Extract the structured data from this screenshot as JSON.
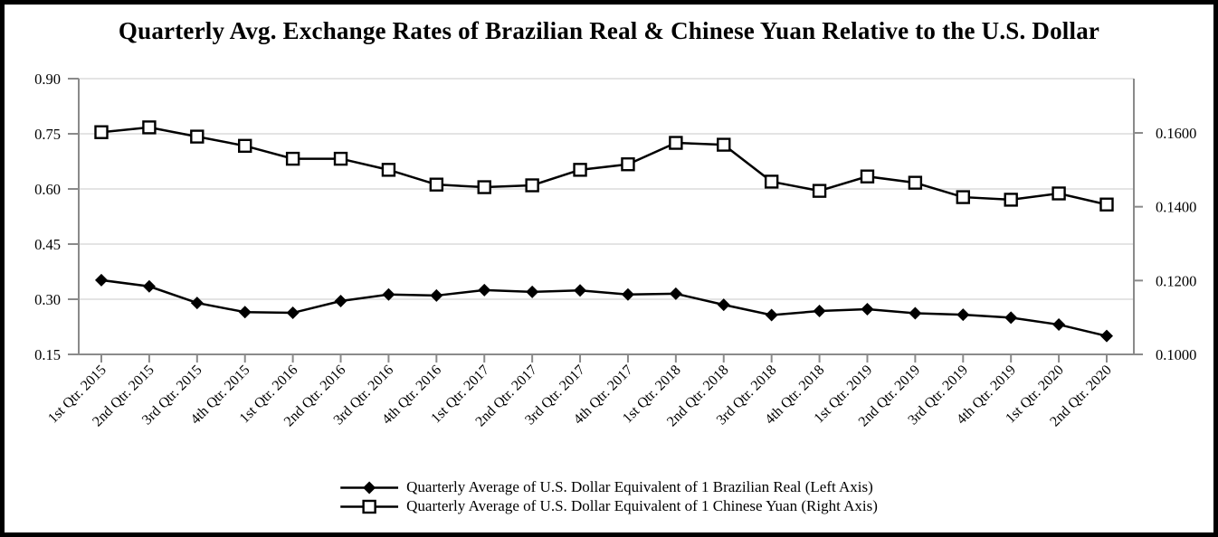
{
  "title": "Quarterly Avg. Exchange Rates of Brazilian Real & Chinese Yuan Relative to the U.S. Dollar",
  "colors": {
    "series": "#000000",
    "axis": "#8a8a8a",
    "gridline": "#dcdcdc",
    "background": "#ffffff",
    "frame_border": "#000000"
  },
  "legend": {
    "items": [
      {
        "slug": "brazilian-real",
        "marker": "filled-diamond",
        "label": "Quarterly Average of U.S. Dollar Equivalent of 1 Brazilian Real (Left Axis)"
      },
      {
        "slug": "chinese-yuan",
        "marker": "open-square",
        "label": "Quarterly Average of U.S. Dollar Equivalent of 1 Chinese Yuan (Right Axis)"
      }
    ]
  },
  "chart_data": {
    "type": "line",
    "title": "Quarterly Avg. Exchange Rates of Brazilian Real & Chinese Yuan Relative to the U.S. Dollar",
    "grid": "horizontal-light",
    "legend_position": "bottom",
    "categories": [
      "1st Qtr. 2015",
      "2nd Qtr. 2015",
      "3rd Qtr. 2015",
      "4th Qtr. 2015",
      "1st Qtr. 2016",
      "2nd Qtr. 2016",
      "3rd Qtr. 2016",
      "4th Qtr. 2016",
      "1st Qtr. 2017",
      "2nd Qtr. 2017",
      "3rd Qtr. 2017",
      "4th Qtr. 2017",
      "1st Qtr. 2018",
      "2nd Qtr. 2018",
      "3rd Qtr. 2018",
      "4th Qtr. 2018",
      "1st Qtr. 2019",
      "2nd Qtr. 2019",
      "3rd Qtr. 2019",
      "4th Qtr. 2019",
      "1st Qtr. 2020",
      "2nd Qtr. 2020"
    ],
    "series": [
      {
        "name": "Quarterly Average of U.S. Dollar Equivalent of 1 Brazilian Real (Left Axis)",
        "slug": "brazilian-real",
        "axis": "left",
        "marker": "filled-diamond",
        "values": [
          0.352,
          0.335,
          0.29,
          0.265,
          0.263,
          0.295,
          0.313,
          0.31,
          0.325,
          0.32,
          0.324,
          0.313,
          0.315,
          0.285,
          0.257,
          0.268,
          0.273,
          0.262,
          0.258,
          0.25,
          0.231,
          0.2
        ]
      },
      {
        "name": "Quarterly Average of U.S. Dollar Equivalent of 1 Chinese Yuan (Right Axis)",
        "slug": "chinese-yuan",
        "axis": "right",
        "marker": "open-square",
        "values": [
          0.1602,
          0.1615,
          0.159,
          0.1565,
          0.153,
          0.153,
          0.15,
          0.146,
          0.1453,
          0.1458,
          0.15,
          0.1515,
          0.1573,
          0.1568,
          0.1468,
          0.1443,
          0.1482,
          0.1465,
          0.1426,
          0.1419,
          0.1436,
          0.1406
        ]
      }
    ],
    "left_axis": {
      "min": 0.15,
      "max": 0.9,
      "ticks": [
        {
          "label": "0.90",
          "value": 0.9
        },
        {
          "label": "0.75",
          "value": 0.75
        },
        {
          "label": "0.60",
          "value": 0.6
        },
        {
          "label": "0.45",
          "value": 0.45
        },
        {
          "label": "0.30",
          "value": 0.3
        },
        {
          "label": "0.15",
          "value": 0.15
        }
      ]
    },
    "right_axis": {
      "min": 0.1,
      "max": 0.1747,
      "ticks": [
        {
          "label": "0.1600",
          "value": 0.16
        },
        {
          "label": "0.1400",
          "value": 0.14
        },
        {
          "label": "0.1200",
          "value": 0.12
        },
        {
          "label": "0.1000",
          "value": 0.1
        }
      ]
    }
  }
}
